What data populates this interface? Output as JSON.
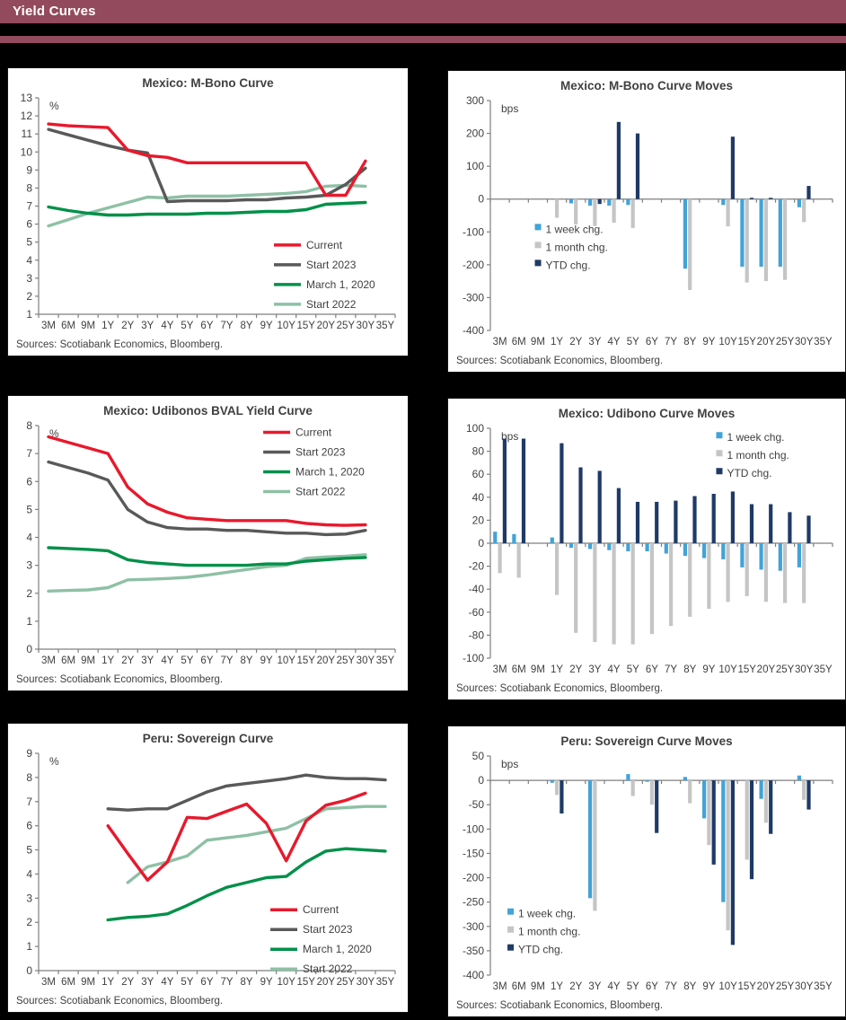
{
  "page": {
    "header_title": "Yield Curves",
    "header_bg": "#934a5c",
    "background": "#000000"
  },
  "colors": {
    "current": "#e8192c",
    "start2023": "#595959",
    "march2020": "#009049",
    "start2022": "#8ec0a5",
    "week": "#41a3d8",
    "month": "#c5c5c5",
    "ytd": "#1f3a66",
    "text": "#404040",
    "axis": "#7f7f7f"
  },
  "categories": [
    "3M",
    "6M",
    "9M",
    "1Y",
    "2Y",
    "3Y",
    "4Y",
    "5Y",
    "6Y",
    "7Y",
    "8Y",
    "9Y",
    "10Y",
    "15Y",
    "20Y",
    "25Y",
    "30Y",
    "35Y"
  ],
  "sources_label": "Sources: Scotiabank Economics, Bloomberg.",
  "chart_data": [
    {
      "id": "mbono-curve",
      "type": "line",
      "title": "Mexico: M-Bono Curve",
      "unit": "%",
      "ylim": [
        1,
        13
      ],
      "ystep": 1,
      "legend": {
        "fx": 0.66,
        "fy": 0.68
      },
      "series": [
        {
          "name": "Start 2022",
          "color_key": "start2022",
          "values": [
            5.9,
            6.25,
            6.6,
            6.9,
            7.2,
            7.5,
            7.45,
            7.55,
            7.55,
            7.55,
            7.6,
            7.65,
            7.7,
            7.8,
            8.1,
            8.15,
            8.1,
            null
          ]
        },
        {
          "name": "March 1, 2020",
          "color_key": "march2020",
          "values": [
            6.95,
            6.75,
            6.6,
            6.5,
            6.5,
            6.55,
            6.55,
            6.55,
            6.6,
            6.6,
            6.65,
            6.7,
            6.7,
            6.8,
            7.1,
            7.15,
            7.2,
            null
          ]
        },
        {
          "name": "Start 2023",
          "color_key": "start2023",
          "values": [
            11.25,
            10.95,
            10.65,
            10.35,
            10.1,
            9.95,
            7.25,
            7.3,
            7.3,
            7.3,
            7.35,
            7.35,
            7.45,
            7.5,
            7.6,
            8.2,
            9.1,
            null
          ]
        },
        {
          "name": "Current",
          "color_key": "current",
          "values": [
            11.55,
            11.45,
            11.4,
            11.35,
            10.1,
            9.8,
            9.7,
            9.4,
            9.4,
            9.4,
            9.4,
            9.4,
            9.4,
            9.4,
            7.6,
            7.6,
            9.5,
            null
          ]
        }
      ],
      "legend_order": [
        "Current",
        "Start 2023",
        "March 1, 2020",
        "Start 2022"
      ]
    },
    {
      "id": "mbono-moves",
      "type": "bar",
      "title": "Mexico: M-Bono Curve Moves",
      "unit": "bps",
      "ylim": [
        -400,
        300
      ],
      "ystep": 100,
      "legend": {
        "fx": 0.13,
        "fy": 0.56
      },
      "series": [
        {
          "name": "1 week chg.",
          "color_key": "week",
          "values": [
            null,
            null,
            null,
            null,
            -13,
            -20,
            -20,
            -18,
            null,
            null,
            -212,
            null,
            -18,
            -206,
            -206,
            -206,
            -25,
            null
          ]
        },
        {
          "name": "1 month chg.",
          "color_key": "month",
          "values": [
            null,
            null,
            null,
            -57,
            -77,
            -82,
            -72,
            -88,
            null,
            null,
            -277,
            null,
            -83,
            -254,
            -250,
            -246,
            -70,
            null
          ]
        },
        {
          "name": "YTD chg.",
          "color_key": "ytd",
          "values": [
            null,
            null,
            null,
            null,
            null,
            -15,
            235,
            200,
            null,
            null,
            null,
            null,
            190,
            4,
            4,
            null,
            40,
            null
          ]
        }
      ],
      "legend_order": [
        "1 week chg.",
        "1 month chg.",
        "YTD chg."
      ]
    },
    {
      "id": "udibonos-curve",
      "type": "line",
      "title": "Mexico: Udibonos BVAL Yield Curve",
      "unit": "%",
      "ylim": [
        0,
        8
      ],
      "ystep": 1,
      "legend": {
        "fx": 0.63,
        "fy": 0.03
      },
      "series": [
        {
          "name": "Start 2022",
          "color_key": "start2022",
          "values": [
            2.08,
            2.1,
            2.12,
            2.2,
            2.48,
            2.5,
            2.53,
            2.57,
            2.65,
            2.75,
            2.85,
            2.95,
            3.0,
            3.25,
            3.3,
            3.33,
            3.38,
            null
          ]
        },
        {
          "name": "March 1, 2020",
          "color_key": "march2020",
          "values": [
            3.63,
            3.6,
            3.57,
            3.52,
            3.2,
            3.1,
            3.05,
            3.0,
            3.0,
            3.0,
            3.0,
            3.05,
            3.05,
            3.15,
            3.2,
            3.25,
            3.28,
            null
          ]
        },
        {
          "name": "Start 2023",
          "color_key": "start2023",
          "values": [
            6.7,
            6.5,
            6.3,
            6.05,
            5.0,
            4.55,
            4.35,
            4.3,
            4.3,
            4.25,
            4.25,
            4.2,
            4.15,
            4.15,
            4.1,
            4.12,
            4.25,
            null
          ]
        },
        {
          "name": "Current",
          "color_key": "current",
          "values": [
            7.6,
            7.4,
            7.2,
            7.0,
            5.8,
            5.2,
            4.9,
            4.7,
            4.65,
            4.6,
            4.6,
            4.6,
            4.6,
            4.5,
            4.45,
            4.43,
            4.45,
            null
          ]
        }
      ],
      "legend_order": [
        "Current",
        "Start 2023",
        "March 1, 2020",
        "Start 2022"
      ]
    },
    {
      "id": "udibono-moves",
      "type": "bar",
      "title": "Mexico: Udibono Curve Moves",
      "unit": "bps",
      "ylim": [
        -100,
        100
      ],
      "ystep": 20,
      "legend": {
        "fx": 0.66,
        "fy": 0.04
      },
      "series": [
        {
          "name": "1 week chg.",
          "color_key": "week",
          "values": [
            10,
            8,
            null,
            5,
            -4,
            -5,
            -6,
            -7,
            -7,
            -9,
            -11,
            -13,
            -14,
            -21,
            -23,
            -24,
            -21,
            null
          ]
        },
        {
          "name": "1 month chg.",
          "color_key": "month",
          "values": [
            -26,
            -30,
            null,
            -45,
            -78,
            -86,
            -88,
            -88,
            -79,
            -72,
            -64,
            -57,
            -51,
            -46,
            -51,
            -52,
            -52,
            null
          ]
        },
        {
          "name": "YTD chg.",
          "color_key": "ytd",
          "values": [
            91,
            91,
            null,
            87,
            66,
            63,
            48,
            36,
            36,
            37,
            41,
            43,
            45,
            34,
            34,
            27,
            24,
            null
          ]
        }
      ],
      "legend_order": [
        "1 week chg.",
        "1 month chg.",
        "YTD chg."
      ]
    },
    {
      "id": "peru-curve",
      "type": "line",
      "title": "Peru: Sovereign Curve",
      "unit": "%",
      "ylim": [
        0,
        9
      ],
      "ystep": 1,
      "legend": {
        "fx": 0.65,
        "fy": 0.72
      },
      "series": [
        {
          "name": "Start 2022",
          "color_key": "start2022",
          "values": [
            null,
            null,
            null,
            null,
            3.65,
            4.3,
            4.5,
            4.75,
            5.4,
            5.5,
            5.6,
            5.75,
            5.9,
            6.3,
            6.7,
            6.75,
            6.8,
            6.8
          ]
        },
        {
          "name": "March 1, 2020",
          "color_key": "march2020",
          "values": [
            null,
            null,
            null,
            2.1,
            2.2,
            2.25,
            2.35,
            2.7,
            3.1,
            3.45,
            3.65,
            3.85,
            3.9,
            4.5,
            4.95,
            5.05,
            5.0,
            4.95
          ]
        },
        {
          "name": "Start 2023",
          "color_key": "start2023",
          "values": [
            null,
            null,
            null,
            6.7,
            6.65,
            6.7,
            6.7,
            7.05,
            7.4,
            7.65,
            7.75,
            7.85,
            7.95,
            8.1,
            8.0,
            7.95,
            7.95,
            7.9
          ]
        },
        {
          "name": "Current",
          "color_key": "current",
          "values": [
            null,
            null,
            null,
            6.0,
            4.85,
            3.75,
            4.5,
            6.35,
            6.3,
            6.6,
            6.9,
            6.1,
            4.55,
            6.2,
            6.85,
            7.05,
            7.35,
            null
          ]
        }
      ],
      "legend_order": [
        "Current",
        "Start 2023",
        "March 1, 2020",
        "Start 2022"
      ]
    },
    {
      "id": "peru-moves",
      "type": "bar",
      "title": "Peru:  Sovereign Curve Moves",
      "unit": "bps",
      "ylim": [
        -400,
        50
      ],
      "ystep": 50,
      "legend": {
        "fx": 0.05,
        "fy": 0.72
      },
      "series": [
        {
          "name": "1 week chg.",
          "color_key": "week",
          "values": [
            null,
            null,
            null,
            -5,
            null,
            -242,
            null,
            13,
            -3,
            null,
            7,
            -78,
            -250,
            null,
            -38,
            null,
            10,
            null
          ]
        },
        {
          "name": "1 month chg.",
          "color_key": "month",
          "values": [
            null,
            null,
            null,
            -30,
            null,
            -268,
            null,
            -32,
            -50,
            null,
            -47,
            -133,
            -308,
            -163,
            -87,
            null,
            -40,
            null
          ]
        },
        {
          "name": "YTD chg.",
          "color_key": "ytd",
          "values": [
            null,
            null,
            null,
            -68,
            null,
            null,
            null,
            null,
            -108,
            null,
            null,
            -173,
            -338,
            -203,
            -110,
            null,
            -60,
            null
          ]
        }
      ],
      "legend_order": [
        "1 week chg.",
        "1 month chg.",
        "YTD chg."
      ]
    }
  ]
}
